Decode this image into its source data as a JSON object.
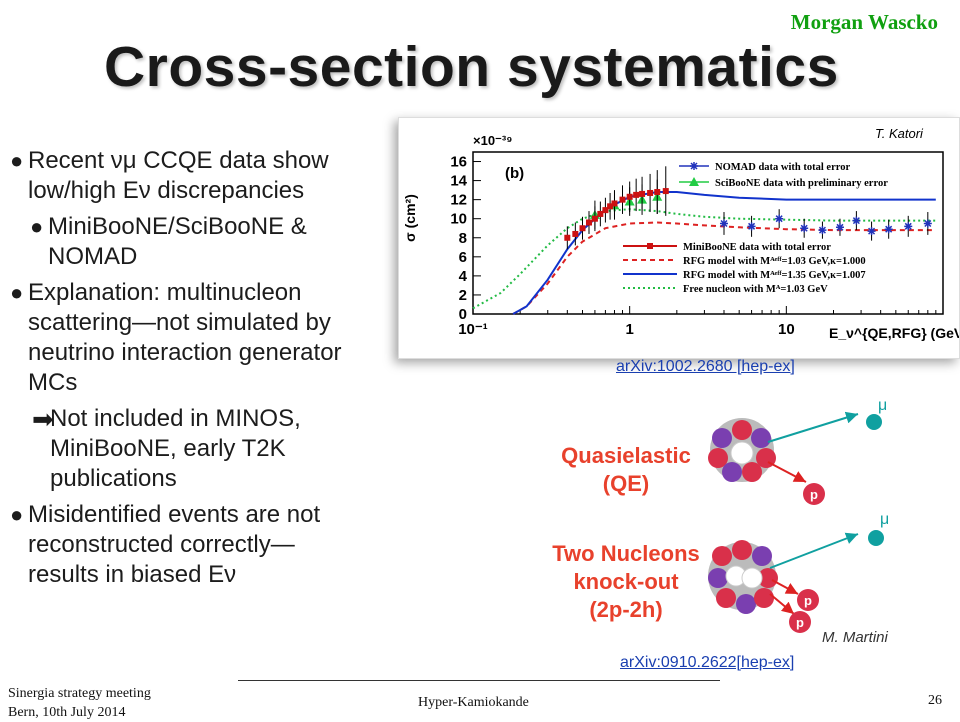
{
  "header": {
    "author": "Morgan Wascko",
    "title": "Cross-section systematics"
  },
  "bullets": [
    {
      "level": 1,
      "marker": "dot",
      "lines": [
        "Recent νμ CCQE data show",
        "low/high Eν discrepancies"
      ]
    },
    {
      "level": 2,
      "marker": "dot",
      "lines": [
        "MiniBooNE/SciBooNE &",
        "NOMAD"
      ]
    },
    {
      "level": 1,
      "marker": "dot",
      "lines": [
        "Explanation: multinucleon",
        "scattering—not simulated by",
        "neutrino interaction generator",
        "MCs"
      ]
    },
    {
      "level": 2,
      "marker": "arrow",
      "lines": [
        "Not included in MINOS,",
        "MiniBooNE, early T2K",
        "publications"
      ]
    },
    {
      "level": 1,
      "marker": "dot",
      "lines": [
        "Misidentified events are not",
        "reconstructed correctly—",
        "results in biased Eν"
      ]
    }
  ],
  "links": {
    "plot_ref": "arXiv:1002.2680 [hep-ex]",
    "diagram_ref": "arXiv:0910.2622[hep-ex]"
  },
  "diagram": {
    "qe_label_line1": "Quasielastic",
    "qe_label_line2": "(QE)",
    "np_label_line1": "Two Nucleons",
    "np_label_line2": "knock-out",
    "np_label_line3": "(2p-2h)",
    "credit": "M. Martini",
    "muon": "μ",
    "proton": "p",
    "neutron": "n"
  },
  "footer": {
    "left_line1": "Sinergia strategy meeting",
    "left_line2": "Bern, 10th July 2014",
    "center": "Hyper-Kamiokande",
    "page": "26"
  },
  "chart_data": {
    "type": "line",
    "xscale": "log",
    "xlim": [
      0.1,
      100
    ],
    "ylim": [
      0,
      17
    ],
    "y_multiplier": "×10⁻³⁹",
    "ylabel": "σ (cm²)",
    "xlabel": "E_ν^{QE,RFG} (GeV)",
    "panel_label": "(b)",
    "credit": "T. Katori",
    "xticks": [
      "10⁻¹",
      "1",
      "10"
    ],
    "yticks": [
      0,
      2,
      4,
      6,
      8,
      10,
      12,
      14,
      16
    ],
    "series": [
      {
        "name": "NOMAD data with total error",
        "kind": "points",
        "color": "#2233bb",
        "marker": "star",
        "x": [
          4.0,
          6.0,
          9.0,
          13.0,
          17.0,
          22.0,
          28.0,
          35.0,
          45.0,
          60.0,
          80.0
        ],
        "y": [
          9.5,
          9.2,
          10.0,
          9.0,
          8.8,
          9.1,
          9.8,
          8.7,
          8.9,
          9.2,
          9.5
        ],
        "err": [
          1.2,
          1.1,
          1.0,
          1.0,
          0.9,
          0.9,
          1.0,
          1.0,
          1.0,
          1.1,
          1.2
        ]
      },
      {
        "name": "SciBooNE data with preliminary error",
        "kind": "points",
        "color": "#22cc44",
        "marker": "triangle",
        "x": [
          0.6,
          0.8,
          1.0,
          1.2,
          1.5
        ],
        "y": [
          10.4,
          11.4,
          11.8,
          12.0,
          12.3
        ],
        "err": [
          1.5,
          1.5,
          1.5,
          1.6,
          1.8
        ]
      },
      {
        "name": "MiniBooNE data with total error",
        "kind": "points",
        "color": "#cc1111",
        "marker": "square",
        "x": [
          0.4,
          0.45,
          0.5,
          0.55,
          0.6,
          0.65,
          0.7,
          0.75,
          0.8,
          0.9,
          1.0,
          1.1,
          1.2,
          1.35,
          1.5,
          1.7
        ],
        "y": [
          8.0,
          8.4,
          9.0,
          9.6,
          10.0,
          10.5,
          10.9,
          11.3,
          11.6,
          12.0,
          12.3,
          12.5,
          12.6,
          12.7,
          12.8,
          12.9
        ],
        "err": [
          1.2,
          1.2,
          1.2,
          1.2,
          1.3,
          1.3,
          1.3,
          1.4,
          1.4,
          1.5,
          1.6,
          1.7,
          1.8,
          2.0,
          2.3,
          2.6
        ]
      },
      {
        "name": "RFG model with Mᴬᵉᶠᶠ=1.03 GeV,κ=1.000",
        "kind": "line",
        "color": "#dd2222",
        "dash": "5,4",
        "x": [
          0.18,
          0.22,
          0.3,
          0.4,
          0.5,
          0.7,
          1.0,
          1.5,
          2,
          3,
          5,
          10,
          20,
          50,
          90
        ],
        "y": [
          0.0,
          0.8,
          3.2,
          6.0,
          7.6,
          9.0,
          9.5,
          9.6,
          9.5,
          9.3,
          9.1,
          8.9,
          8.8,
          8.8,
          8.8
        ]
      },
      {
        "name": "RFG model with Mᴬᵉᶠᶠ=1.35 GeV,κ=1.007",
        "kind": "line",
        "color": "#1133cc",
        "dash": "",
        "x": [
          0.18,
          0.22,
          0.3,
          0.4,
          0.5,
          0.7,
          1.0,
          1.5,
          2,
          3,
          5,
          10,
          20,
          50,
          90
        ],
        "y": [
          0.0,
          0.8,
          3.6,
          6.8,
          8.8,
          11.0,
          12.3,
          12.8,
          12.8,
          12.5,
          12.2,
          12.0,
          12.0,
          12.0,
          12.0
        ]
      },
      {
        "name": "Free nucleon with Mᴬ=1.03 GeV",
        "kind": "line",
        "color": "#22bb44",
        "dash": "2,3",
        "x": [
          0.1,
          0.15,
          0.2,
          0.3,
          0.4,
          0.5,
          0.7,
          1.0,
          1.5,
          2,
          3,
          5,
          10,
          20,
          50,
          90
        ],
        "y": [
          0.6,
          2.2,
          4.2,
          7.2,
          9.0,
          10.0,
          10.8,
          11.0,
          10.8,
          10.5,
          10.2,
          10.0,
          9.9,
          9.8,
          9.8,
          9.8
        ]
      }
    ]
  }
}
